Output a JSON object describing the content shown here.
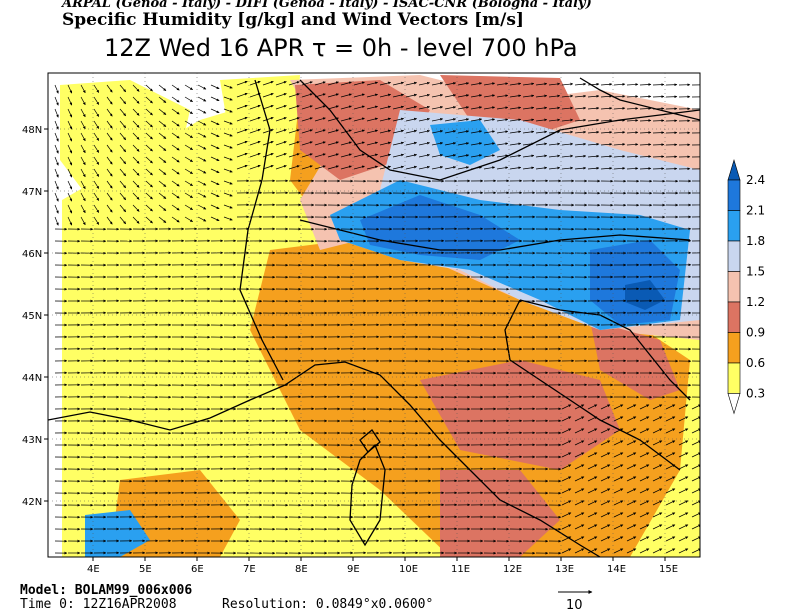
{
  "header": {
    "credits": "ARPAL (Genoa - Italy)  -  DIFI (Genoa - Italy)  -  ISAC-CNR (Bologna - Italy)",
    "title": "Specific Humidity [g/kg] and Wind Vectors [m/s]",
    "subtitle": "12Z Wed 16 APR  τ = 0h  -  level 700 hPa"
  },
  "map": {
    "lat_ticks": [
      "48N",
      "47N",
      "46N",
      "45N",
      "44N",
      "43N",
      "42N"
    ],
    "lon_ticks": [
      "4E",
      "5E",
      "6E",
      "7E",
      "8E",
      "9E",
      "10E",
      "11E",
      "12E",
      "13E",
      "14E",
      "15E"
    ]
  },
  "legend": {
    "levels": [
      "2.4",
      "2.1",
      "1.8",
      "1.5",
      "1.2",
      "0.9",
      "0.6",
      "0.3"
    ],
    "colors": [
      "#0a5ab4",
      "#1e78dc",
      "#2aa0f0",
      "#c9d6ef",
      "#f5c3b0",
      "#dc7462",
      "#f5a01e",
      "#ffff64"
    ]
  },
  "footer": {
    "model": "Model: BOLAM99_006x006",
    "time": "Time 0: 12Z16APR2008",
    "resolution": "Resolution: 0.0849°x0.0600°",
    "ref_vector_label": "10"
  }
}
